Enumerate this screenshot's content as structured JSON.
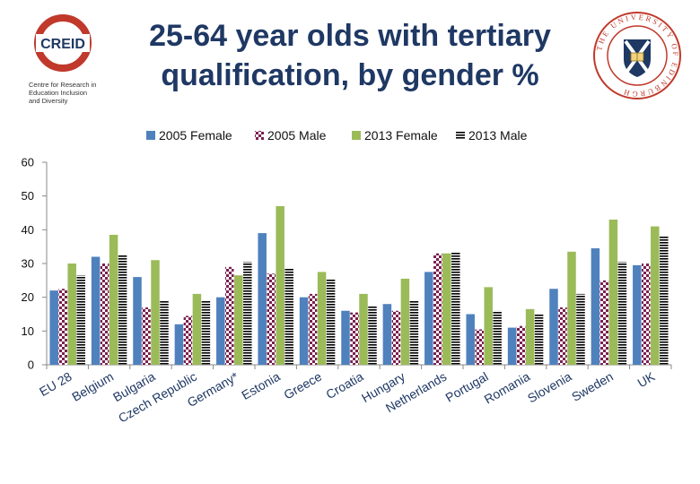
{
  "slide": {
    "title_line1": "25-64 year olds with tertiary",
    "title_line2": "qualification, by gender %"
  },
  "logo_left": {
    "brand": "CREID",
    "caption_line1": "Centre for Research in",
    "caption_line2": "Education Inclusion",
    "caption_line3": "and Diversity"
  },
  "logo_right": {
    "seal_text": "THE UNIVERSITY OF EDINBURGH"
  },
  "colors": {
    "female_2005": "#4f81bd",
    "male_2005": "#7b2050",
    "female_2013": "#9bbb59",
    "male_2013": "#000000",
    "title": "#1f3864"
  },
  "chart_data": {
    "type": "bar",
    "title": "",
    "xlabel": "",
    "ylabel": "",
    "ylim": [
      0,
      60
    ],
    "yticks": [
      0,
      10,
      20,
      30,
      40,
      50,
      60
    ],
    "grid": false,
    "legend_position": "top",
    "categories": [
      "EU 28",
      "Belgium",
      "Bulgaria",
      "Czech Republic",
      "Germany*",
      "Estonia",
      "Greece",
      "Croatia",
      "Hungary",
      "Netherlands",
      "Portugal",
      "Romania",
      "Slovenia",
      "Sweden",
      "UK"
    ],
    "series": [
      {
        "name": "2005 Female",
        "pattern": "solid",
        "values": [
          22,
          32,
          26,
          12,
          20,
          39,
          20,
          16,
          18,
          27.5,
          15,
          11,
          22.5,
          34.5,
          29.5
        ]
      },
      {
        "name": "2005 Male",
        "pattern": "checker",
        "values": [
          22.5,
          30,
          17,
          14.5,
          29,
          27,
          21,
          15.5,
          16,
          33,
          10.5,
          11.5,
          17,
          25,
          30
        ]
      },
      {
        "name": "2013 Female",
        "pattern": "solid",
        "values": [
          30,
          38.5,
          31,
          21,
          26.5,
          47,
          27.5,
          21,
          25.5,
          33,
          23,
          16.5,
          33.5,
          43,
          41
        ]
      },
      {
        "name": "2013 Male",
        "pattern": "stripes",
        "values": [
          26.5,
          32.5,
          19,
          19,
          30.5,
          28.5,
          25.5,
          17.5,
          19,
          33.5,
          16,
          15,
          21,
          30.5,
          38
        ]
      }
    ]
  }
}
